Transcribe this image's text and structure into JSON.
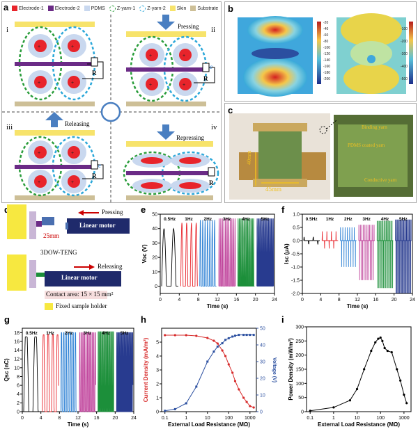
{
  "panel_a": {
    "label": "a",
    "legend": [
      {
        "text": "Electrode-1",
        "color": "#e8242b"
      },
      {
        "text": "Electrode-2",
        "color": "#6b2b86"
      },
      {
        "text": "PDMS",
        "color": "#c9d8ef"
      },
      {
        "text": "Z-yarn-1",
        "color": "#2a9d3b"
      },
      {
        "text": "Z-yarn-2",
        "color": "#2aa7d9"
      },
      {
        "text": "Skin",
        "color": "#f7e36b"
      },
      {
        "text": "Substrate",
        "color": "#cdbf97"
      }
    ],
    "states": [
      "i",
      "ii",
      "iii",
      "iv"
    ],
    "actions": [
      "Pressing",
      "Releasing",
      "Repressing"
    ],
    "resistor": "R",
    "electron": "e"
  },
  "panel_b": {
    "label": "b",
    "left_ticks": [
      "-20",
      "-40",
      "-60",
      "-80",
      "-100",
      "-120",
      "-140",
      "-160",
      "-180",
      "-200"
    ],
    "right_ticks": [
      "-100",
      "-200",
      "-300",
      "-400",
      "-500"
    ]
  },
  "panel_c": {
    "label": "c",
    "dim1": "45mm",
    "dim2": "40mm",
    "annot": [
      "Binding yarn",
      "PDMS coated yarn",
      "Conductive yarn"
    ]
  },
  "panel_d": {
    "label": "d",
    "pressing": "Pressing",
    "releasing": "Releasing",
    "linear_motor": "Linear motor",
    "distance": "25mm",
    "device": "3DOW-TENG",
    "contact": "Contact area: 15 × 15 mm²",
    "holder": "Fixed sample holder"
  },
  "colors": {
    "hz05": "#000000",
    "hz1": "#e8242b",
    "hz2": "#2a7fd4",
    "hz3": "#c0449c",
    "hz4": "#1c8f3a",
    "hz5": "#283b8f"
  },
  "chart_data": [
    {
      "panel": "e",
      "type": "line",
      "xlabel": "Time (s)",
      "ylabel": "Voc (V)",
      "xlim": [
        0,
        24
      ],
      "ylim": [
        -5,
        50
      ],
      "xticks": [
        "0",
        "4",
        "8",
        "12",
        "16",
        "20",
        "24"
      ],
      "yticks": [
        "0",
        "10",
        "20",
        "30",
        "40",
        "50"
      ],
      "series": [
        {
          "name": "0.5Hz",
          "x_range": [
            0,
            4
          ],
          "freq": 0.5,
          "amplitude": 40,
          "color": "#000000"
        },
        {
          "name": "1Hz",
          "x_range": [
            4,
            8
          ],
          "freq": 1,
          "amplitude": 44,
          "color": "#e8242b"
        },
        {
          "name": "2Hz",
          "x_range": [
            8,
            12
          ],
          "freq": 2,
          "amplitude": 46,
          "color": "#2a7fd4"
        },
        {
          "name": "3Hz",
          "x_range": [
            12,
            16
          ],
          "freq": 3,
          "amplitude": 47,
          "color": "#c0449c"
        },
        {
          "name": "4Hz",
          "x_range": [
            16,
            20
          ],
          "freq": 4,
          "amplitude": 47,
          "color": "#1c8f3a"
        },
        {
          "name": "5Hz",
          "x_range": [
            20,
            24
          ],
          "freq": 5,
          "amplitude": 47,
          "color": "#283b8f"
        }
      ]
    },
    {
      "panel": "f",
      "type": "line",
      "xlabel": "Time (s)",
      "ylabel": "Isc (μA)",
      "xlim": [
        0,
        24
      ],
      "ylim": [
        -2.0,
        1.0
      ],
      "xticks": [
        "0",
        "4",
        "8",
        "12",
        "16",
        "20",
        "24"
      ],
      "yticks": [
        "1.0",
        "0.5",
        "0.0",
        "-0.5",
        "-1.0",
        "-1.5",
        "-2.0"
      ],
      "series": [
        {
          "name": "0.5Hz",
          "x_range": [
            0,
            4
          ],
          "freq": 0.5,
          "pos": 0.15,
          "neg": -0.15,
          "color": "#000000"
        },
        {
          "name": "1Hz",
          "x_range": [
            4,
            8
          ],
          "freq": 1,
          "pos": 0.35,
          "neg": -0.3,
          "color": "#e8242b"
        },
        {
          "name": "2Hz",
          "x_range": [
            8,
            12
          ],
          "freq": 2,
          "pos": 0.5,
          "neg": -1.0,
          "color": "#2a7fd4"
        },
        {
          "name": "3Hz",
          "x_range": [
            12,
            16
          ],
          "freq": 3,
          "pos": 0.6,
          "neg": -1.5,
          "color": "#c0449c"
        },
        {
          "name": "4Hz",
          "x_range": [
            16,
            20
          ],
          "freq": 4,
          "pos": 0.75,
          "neg": -1.8,
          "color": "#1c8f3a"
        },
        {
          "name": "5Hz",
          "x_range": [
            20,
            24
          ],
          "freq": 5,
          "pos": 0.8,
          "neg": -2.0,
          "color": "#283b8f"
        }
      ]
    },
    {
      "panel": "g",
      "type": "line",
      "xlabel": "Time (s)",
      "ylabel": "Qsc (nC)",
      "xlim": [
        0,
        24
      ],
      "ylim": [
        0,
        19
      ],
      "xticks": [
        "0",
        "4",
        "8",
        "12",
        "16",
        "20",
        "24"
      ],
      "yticks": [
        "0",
        "2",
        "4",
        "6",
        "8",
        "10",
        "12",
        "14",
        "16",
        "18"
      ],
      "series": [
        {
          "name": "0.5Hz",
          "x_range": [
            0,
            4
          ],
          "freq": 0.5,
          "amplitude": 17,
          "color": "#000000"
        },
        {
          "name": "1Hz",
          "x_range": [
            4,
            8
          ],
          "freq": 1,
          "amplitude": 17.5,
          "color": "#e8242b"
        },
        {
          "name": "2Hz",
          "x_range": [
            8,
            12
          ],
          "freq": 2,
          "amplitude": 18,
          "color": "#2a7fd4"
        },
        {
          "name": "3Hz",
          "x_range": [
            12,
            16
          ],
          "freq": 3,
          "amplitude": 18,
          "color": "#c0449c"
        },
        {
          "name": "4Hz",
          "x_range": [
            16,
            20
          ],
          "freq": 4,
          "amplitude": 18.2,
          "color": "#1c8f3a"
        },
        {
          "name": "5Hz",
          "x_range": [
            20,
            24
          ],
          "freq": 5,
          "amplitude": 18,
          "color": "#283b8f"
        }
      ]
    },
    {
      "panel": "h",
      "type": "line",
      "xlabel": "External Load Resistance (MΩ)",
      "ylabel": "Current Density (mA/m²)",
      "ylabel2": "Voltage (V)",
      "xscale": "log",
      "xlim": [
        0.07,
        2000
      ],
      "xticks": [
        "0.1",
        "1",
        "10",
        "100",
        "1000"
      ],
      "ylim": [
        0,
        6
      ],
      "yticks": [
        "0",
        "1",
        "2",
        "3",
        "4",
        "5"
      ],
      "ylim2": [
        0,
        50
      ],
      "yticks2": [
        "0",
        "10",
        "20",
        "30",
        "40",
        "50"
      ],
      "x": [
        0.1,
        0.3,
        1,
        3,
        10,
        20,
        30,
        50,
        70,
        100,
        150,
        200,
        300,
        500,
        700,
        1000,
        1500
      ],
      "series": [
        {
          "name": "Current Density",
          "axis": "left",
          "color": "#d72a2a",
          "values": [
            5.5,
            5.5,
            5.5,
            5.45,
            5.3,
            5.1,
            4.9,
            4.4,
            4.0,
            3.4,
            2.8,
            2.2,
            1.6,
            1.0,
            0.7,
            0.4,
            0.3
          ]
        },
        {
          "name": "Voltage",
          "axis": "right",
          "color": "#2b4fa0",
          "values": [
            0.5,
            1.5,
            5,
            15,
            30,
            36,
            39,
            41,
            43,
            44,
            45,
            45.5,
            46,
            46,
            46,
            46,
            46
          ]
        }
      ]
    },
    {
      "panel": "i",
      "type": "line",
      "xlabel": "External Load Resistance (MΩ)",
      "ylabel": "Power Density (mW/m²)",
      "xscale": "log",
      "xlim": [
        0.07,
        2000
      ],
      "xticks": [
        "0.1",
        "1",
        "10",
        "100",
        "1000"
      ],
      "ylim": [
        0,
        300
      ],
      "yticks": [
        "0",
        "50",
        "100",
        "150",
        "200",
        "250",
        "300"
      ],
      "x": [
        0.1,
        1,
        5,
        10,
        20,
        40,
        60,
        80,
        100,
        120,
        150,
        200,
        300,
        500,
        700,
        1000,
        1300
      ],
      "series": [
        {
          "name": "Power Density",
          "color": "#000000",
          "values": [
            3,
            15,
            40,
            80,
            150,
            215,
            245,
            258,
            262,
            250,
            225,
            215,
            210,
            150,
            110,
            60,
            30
          ]
        }
      ]
    }
  ]
}
